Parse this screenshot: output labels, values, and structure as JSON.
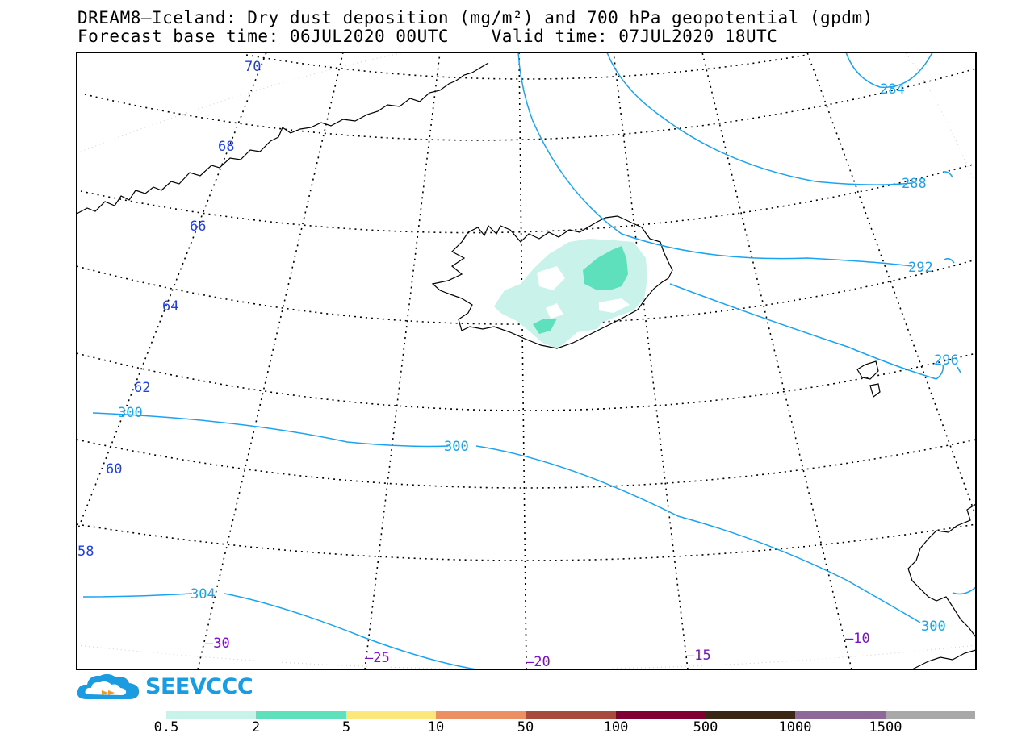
{
  "title_line1": "DREAM8–Iceland: Dry dust deposition (mg/m²) and 700 hPa geopotential (gpdm)",
  "title_line2": "Forecast base time: 06JUL2020 00UTC    Valid time: 07JUL2020 18UTC",
  "logo_text": "SEEVCCC",
  "colors": {
    "contour": "#1aa3f0",
    "lat_label": "#1f3fe0",
    "lon_label": "#7a10c8",
    "dust_low": "#c8f2ea",
    "dust_mid": "#5ee0bd"
  },
  "map": {
    "lat_labels": [
      "70",
      "68",
      "66",
      "64",
      "62",
      "60",
      "58"
    ],
    "lon_labels": [
      "–30",
      "–25",
      "–20",
      "–15",
      "–10"
    ],
    "contour_labels": [
      "284",
      "288",
      "292",
      "296",
      "300",
      "300",
      "300",
      "304"
    ]
  },
  "legend": {
    "colors": [
      "#c8f2ea",
      "#5ee0bd",
      "#fbe77a",
      "#ec8f63",
      "#a94a3f",
      "#800033",
      "#3b2515",
      "#8e6899",
      "#a8a8a8"
    ],
    "labels": [
      "0.5",
      "2",
      "5",
      "10",
      "50",
      "100",
      "500",
      "1000",
      "1500"
    ]
  }
}
